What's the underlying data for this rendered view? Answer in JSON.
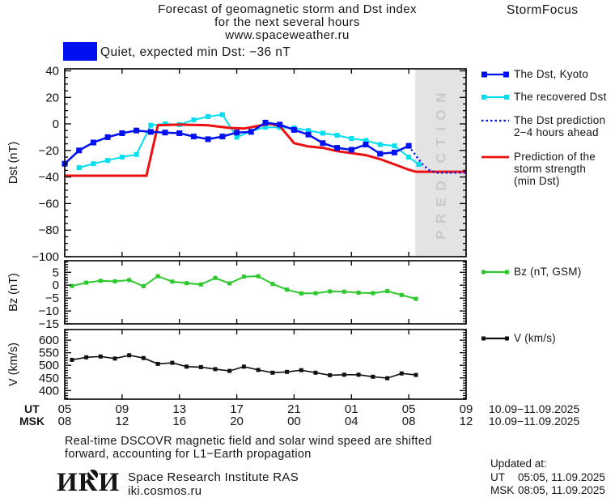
{
  "header": {
    "title_line1": "Forecast of geomagnetic storm and Dst index",
    "title_line2": "for the next several hours",
    "title_line3": "www.spaceweather.ru",
    "brand": "StormFocus"
  },
  "status": {
    "swatch_color": "#0010ee",
    "text": "Quiet, expected min Dst: −36 nT"
  },
  "legend": {
    "items": [
      {
        "id": "dst-kyoto",
        "label": "The Dst, Kyoto",
        "color": "#0010ee",
        "style": "squares",
        "marker": 7
      },
      {
        "id": "recovered-dst",
        "label": "The recovered Dst",
        "color": "#00dff0",
        "style": "squares",
        "marker": 6
      },
      {
        "id": "dst-prediction",
        "label": "The Dst prediction\n2−4 hours ahead",
        "color": "#0010ee",
        "style": "dotted"
      },
      {
        "id": "storm-strength",
        "label": "Prediction of the\nstorm strength\n(min Dst)",
        "color": "#ee1010",
        "style": "line"
      },
      {
        "id": "bz",
        "label": "Bz (nT, GSM)",
        "color": "#2dc82d",
        "style": "squares",
        "marker": 5
      },
      {
        "id": "v",
        "label": "V (km/s)",
        "color": "#111111",
        "style": "squares",
        "marker": 5
      }
    ]
  },
  "xaxis": {
    "ut_label": "UT",
    "msk_label": "MSK",
    "ut_range": "10.09−11.09.2025",
    "msk_range": "10.09−11.09.2025",
    "ticks": [
      {
        "h": 0,
        "ut": "05",
        "msk": "08"
      },
      {
        "h": 4,
        "ut": "09",
        "msk": "12"
      },
      {
        "h": 8,
        "ut": "13",
        "msk": "16"
      },
      {
        "h": 12,
        "ut": "17",
        "msk": "20"
      },
      {
        "h": 16,
        "ut": "21",
        "msk": "00"
      },
      {
        "h": 20,
        "ut": "01",
        "msk": "04"
      },
      {
        "h": 24,
        "ut": "05",
        "msk": "08"
      },
      {
        "h": 28,
        "ut": "09",
        "msk": "12"
      }
    ]
  },
  "chart_data": [
    {
      "id": "dst",
      "type": "line",
      "ylabel": "Dst (nT)",
      "xlim": [
        0,
        28
      ],
      "ylim": [
        -100,
        41.5
      ],
      "yticks": [
        40,
        20,
        0,
        -20,
        -40,
        -60,
        -80,
        -100
      ],
      "ytick_minor": 5,
      "x_unit": "hours since 05 UT 10.09.2025",
      "prediction_region": {
        "start_hour": 24.45,
        "label": "PREDICTION",
        "fill": "#e3e3e3",
        "text_color": "#c9c9c9"
      },
      "series": [
        {
          "id": "recovered-dst",
          "name": "The recovered Dst",
          "color": "#00dff0",
          "width": 2,
          "marker": 6,
          "x": [
            1,
            2,
            3,
            4,
            5,
            6,
            7,
            8,
            9,
            10,
            11,
            12,
            13,
            14,
            15,
            16,
            17,
            18,
            19,
            20,
            21,
            22,
            23,
            24,
            24.7
          ],
          "y": [
            -33,
            -30,
            -27.5,
            -25,
            -23,
            -1,
            0,
            -0.5,
            3,
            5.5,
            7,
            -10,
            -5.5,
            -2.5,
            -2.7,
            -3,
            -5,
            -7,
            -8.5,
            -11,
            -12.5,
            -15.5,
            -16.5,
            -25,
            -30.5
          ]
        },
        {
          "id": "storm-prediction",
          "name": "Prediction of the storm strength (min Dst)",
          "color": "#ee1010",
          "width": 3,
          "marker": 0,
          "x": [
            0,
            5.7,
            6.5,
            8,
            10,
            11.5,
            12.5,
            13.5,
            14.3,
            15,
            16,
            17,
            18,
            19,
            20,
            21,
            22,
            23,
            24,
            24.5,
            28
          ],
          "y": [
            -39,
            -39,
            -1,
            -0.5,
            -1,
            -3,
            -3.5,
            -1.5,
            0,
            -1.5,
            -14.5,
            -17,
            -18,
            -20.5,
            -22,
            -23.5,
            -26.5,
            -30.5,
            -34.5,
            -36,
            -36
          ]
        },
        {
          "id": "dst-kyoto",
          "name": "The Dst, Kyoto",
          "color": "#0010ee",
          "width": 2.5,
          "marker": 7,
          "x": [
            0,
            1,
            2,
            3,
            4,
            5,
            6,
            7,
            8,
            9,
            10,
            11,
            12,
            13,
            14,
            15,
            16,
            17,
            18,
            19,
            20,
            21,
            22,
            23,
            24
          ],
          "y": [
            -30,
            -20,
            -14,
            -10,
            -7,
            -5,
            -6,
            -6.5,
            -7,
            -9.5,
            -11.5,
            -9.5,
            -6.5,
            -6,
            1,
            -0.5,
            -4.5,
            -8,
            -14.5,
            -18,
            -19.5,
            -15.5,
            -22.5,
            -21.5,
            -16.5
          ]
        },
        {
          "id": "dst-prediction-dotted",
          "name": "The Dst prediction 2−4 hours ahead",
          "color": "#0010ee",
          "width": 2.5,
          "marker": 0,
          "dash": "2 3.5",
          "x": [
            24,
            24.5,
            25,
            25.5,
            26,
            28
          ],
          "y": [
            -16.5,
            -24,
            -31,
            -35.5,
            -36.8,
            -36.8
          ]
        }
      ]
    },
    {
      "id": "bz",
      "type": "line",
      "ylabel": "Bz (nT)",
      "legend_name": "Bz (nT, GSM)",
      "xlim": [
        0,
        28
      ],
      "ylim": [
        -15,
        9.5
      ],
      "yticks": [
        5,
        0,
        -5,
        -10,
        -15
      ],
      "ytick_minor": 1,
      "series": [
        {
          "id": "bz-gsm",
          "name": "Bz (nT, GSM)",
          "color": "#2dc82d",
          "width": 2,
          "marker": 5,
          "x": [
            0.5,
            1.5,
            2.5,
            3.5,
            4.5,
            5.5,
            6.5,
            7.5,
            8.5,
            9.5,
            10.5,
            11.5,
            12.5,
            13.5,
            14.5,
            15.5,
            16.5,
            17.5,
            18.5,
            19.5,
            20.5,
            21.5,
            22.5,
            23.5,
            24.5
          ],
          "y": [
            -0.3,
            1.0,
            1.7,
            1.5,
            2.0,
            -0.4,
            3.5,
            1.4,
            0.8,
            0.3,
            2.8,
            0.7,
            3.3,
            3.5,
            0.5,
            -1.7,
            -3.2,
            -3.1,
            -2.4,
            -2.5,
            -2.9,
            -3.1,
            -2.3,
            -3.8,
            -5.3
          ]
        }
      ]
    },
    {
      "id": "v",
      "type": "line",
      "ylabel": "V (km/s)",
      "legend_name": "V (km/s)",
      "xlim": [
        0,
        28
      ],
      "ylim": [
        366,
        642
      ],
      "yticks": [
        600,
        550,
        500,
        450,
        400
      ],
      "ytick_minor": 10,
      "series": [
        {
          "id": "solar-wind-speed",
          "name": "V (km/s)",
          "color": "#111111",
          "width": 1.6,
          "marker": 5,
          "x": [
            0.5,
            1.5,
            2.5,
            3.5,
            4.5,
            5.5,
            6.5,
            7.5,
            8.5,
            9.5,
            10.5,
            11.5,
            12.5,
            13.5,
            14.5,
            15.5,
            16.5,
            17.5,
            18.5,
            19.5,
            20.5,
            21.5,
            22.5,
            23.5,
            24.5
          ],
          "y": [
            522,
            532,
            535,
            527,
            540,
            529,
            506,
            510,
            495,
            493,
            485,
            478,
            495,
            482,
            471,
            474,
            481,
            471,
            461,
            463,
            463,
            455,
            449,
            468,
            462
          ]
        }
      ]
    }
  ],
  "footer": {
    "line1": "Real-time DSCOVR magnetic field and solar wind speed are shifted",
    "line2": "forward, accounting for L1−Earth propagation"
  },
  "logo": {
    "text": "ИКИ",
    "org_line1": "Space Research Institute RAS",
    "org_line2": "iki.cosmos.ru"
  },
  "updated": {
    "heading": "Updated at:",
    "rows": [
      {
        "label": "UT",
        "value": "05:05, 11.09.2025"
      },
      {
        "label": "MSK",
        "value": "08:05, 11.09.2025"
      }
    ]
  }
}
